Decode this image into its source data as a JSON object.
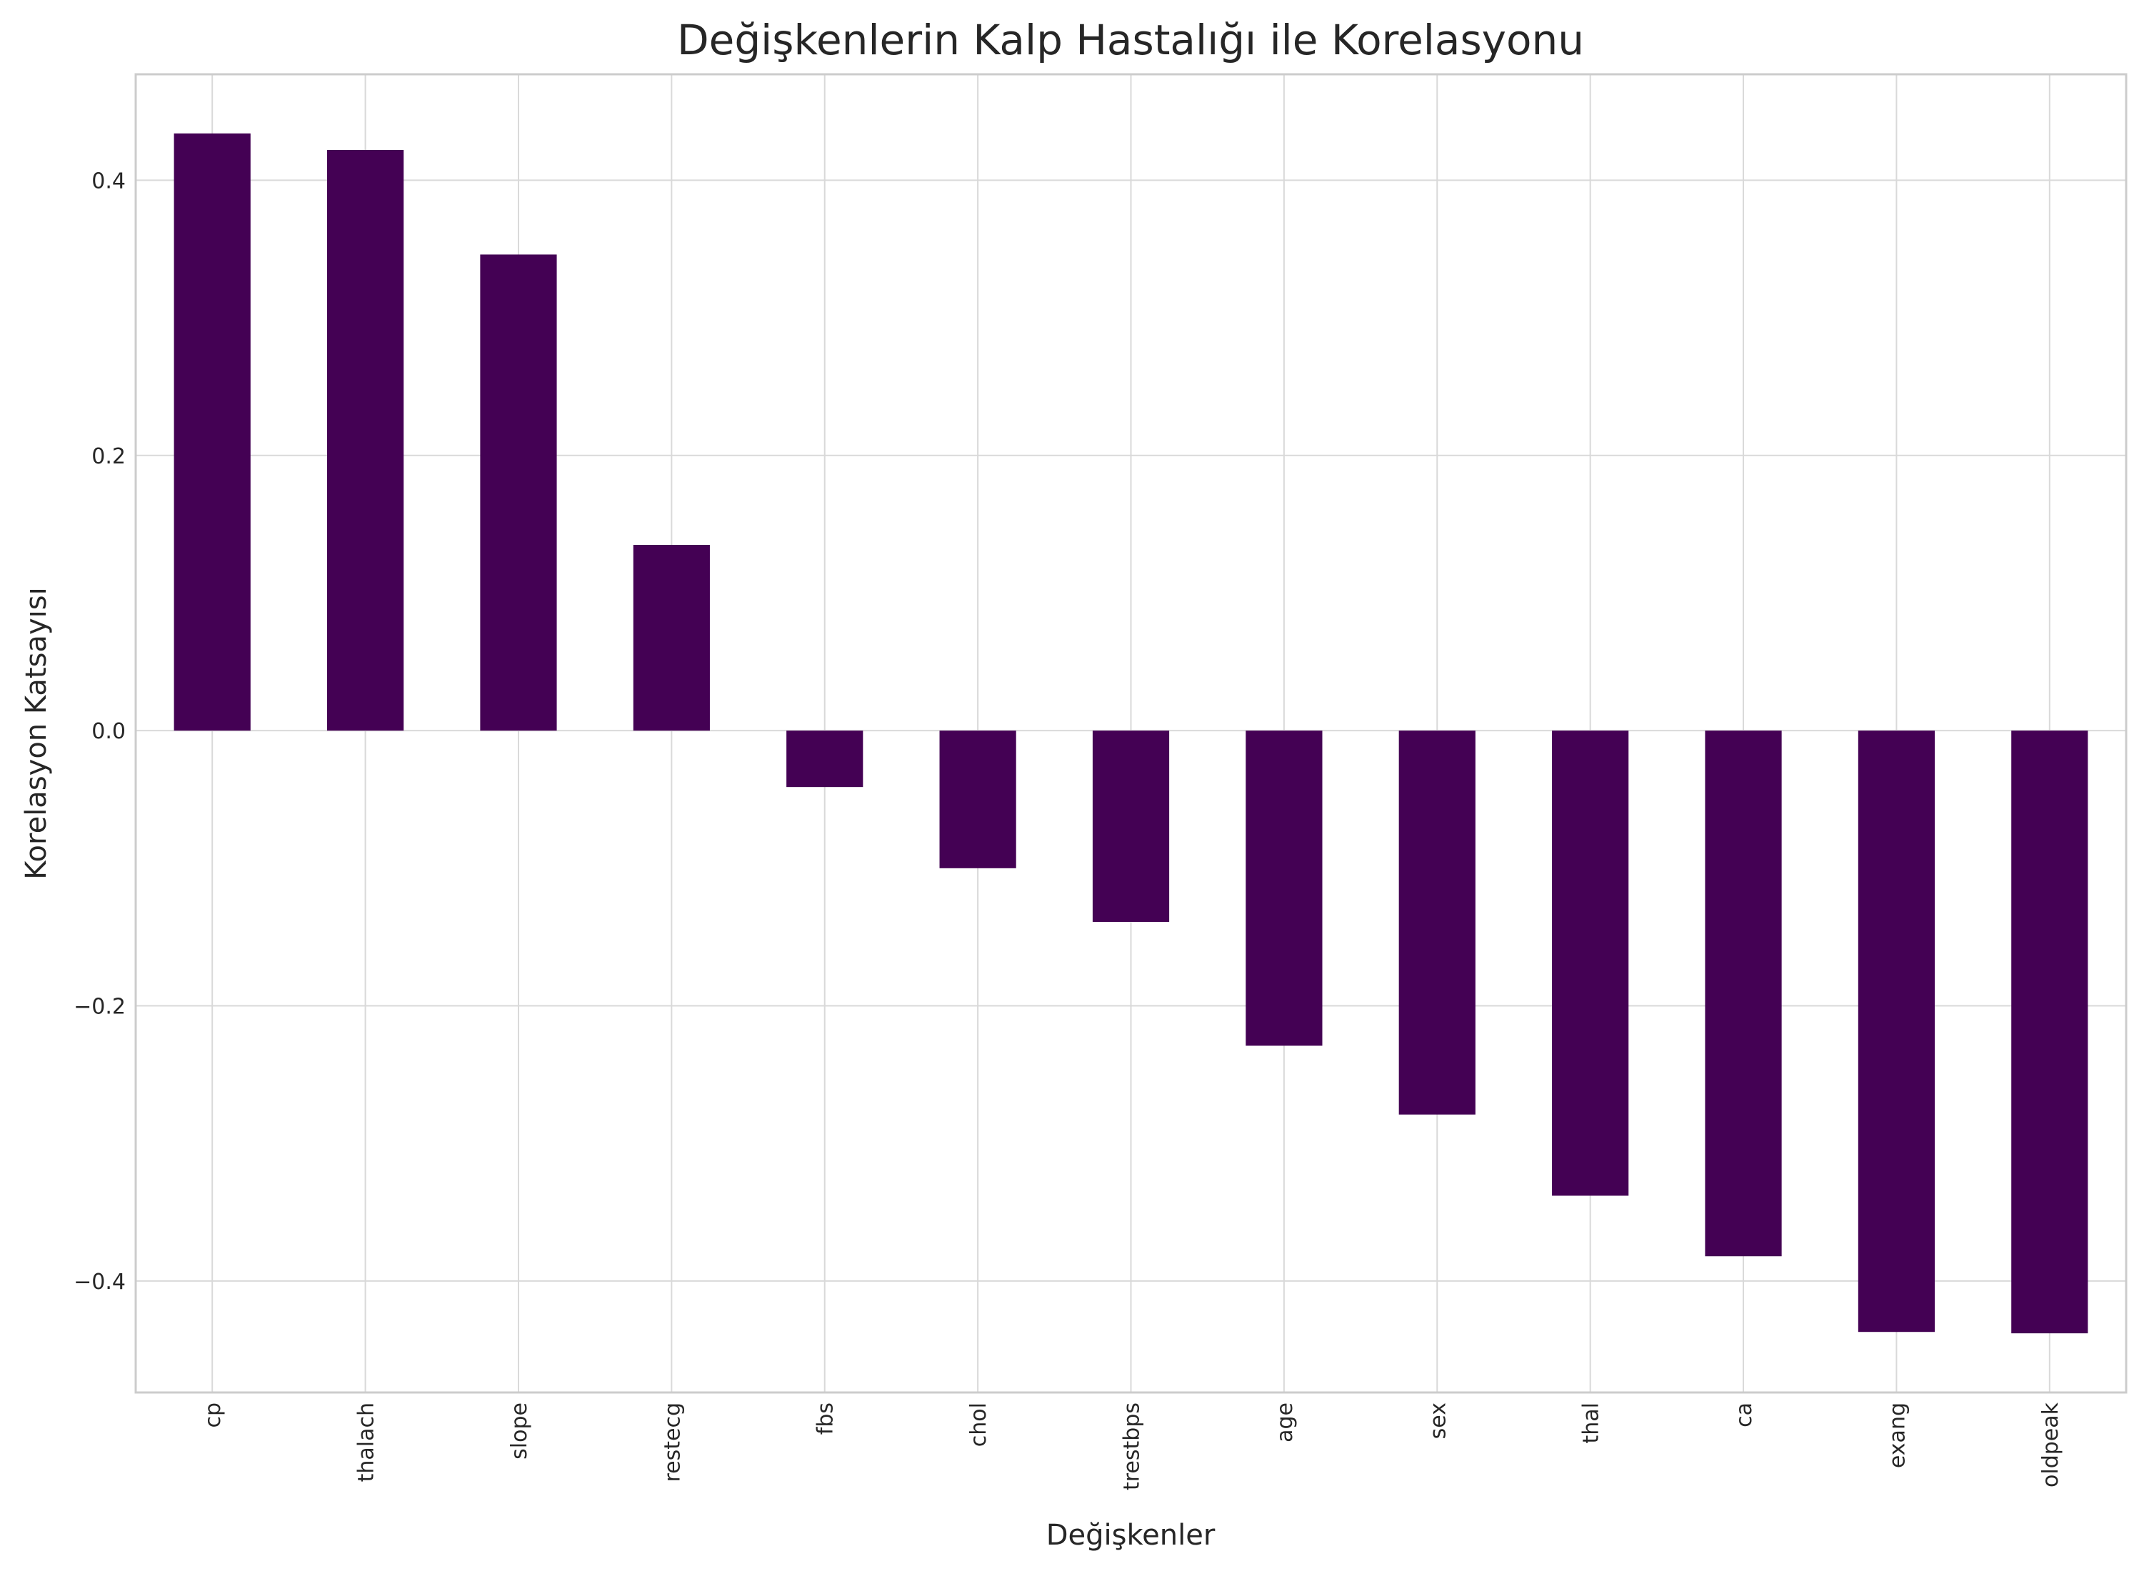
{
  "chart_data": {
    "type": "bar",
    "title": "Değişkenlerin Kalp Hastalığı ile Korelasyonu",
    "xlabel": "Değişkenler",
    "ylabel": "Korelasyon Katsayısı",
    "categories": [
      "cp",
      "thalach",
      "slope",
      "restecg",
      "fbs",
      "chol",
      "trestbps",
      "age",
      "sex",
      "thal",
      "ca",
      "exang",
      "oldpeak"
    ],
    "values": [
      0.434,
      0.422,
      0.346,
      0.135,
      -0.041,
      -0.1,
      -0.139,
      -0.229,
      -0.279,
      -0.338,
      -0.382,
      -0.437,
      -0.438
    ],
    "yticks": [
      0.4,
      0.2,
      0.0,
      -0.2,
      -0.4
    ],
    "ytick_labels": [
      "0.4",
      "0.2",
      "0.0",
      "−0.2",
      "−0.4"
    ],
    "ylim": [
      -0.481,
      0.477
    ],
    "grid": true,
    "colors": {
      "bar": "#440154",
      "grid": "#d9d9d9",
      "spine": "#cccccc",
      "text": "#262626"
    }
  }
}
